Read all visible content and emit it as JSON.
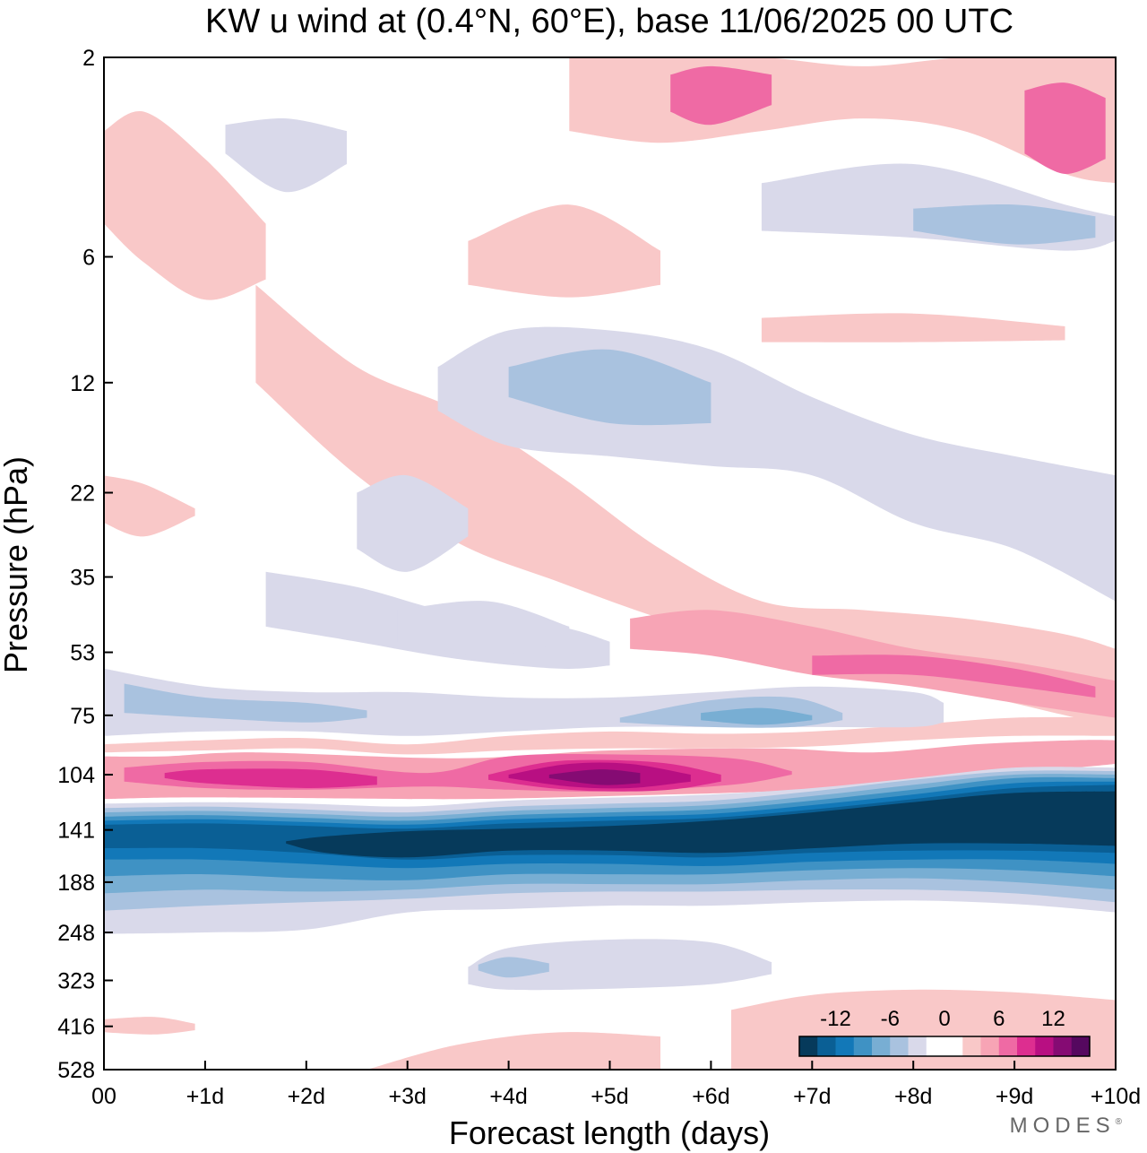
{
  "chart_data": {
    "type": "heatmap",
    "title": "KW u wind at (0.4°N, 60°E),  base 11/06/2025  00 UTC",
    "xlabel": "Forecast length (days)",
    "ylabel": "Pressure (hPa)",
    "x_ticks": [
      "00",
      "+1d",
      "+2d",
      "+3d",
      "+4d",
      "+5d",
      "+6d",
      "+7d",
      "+8d",
      "+9d",
      "+10d"
    ],
    "xlim": [
      0,
      10
    ],
    "y_ticks": [
      2,
      6,
      12,
      22,
      35,
      53,
      75,
      104,
      141,
      188,
      248,
      323,
      416,
      528
    ],
    "ylim": [
      2,
      528
    ],
    "colorbar": {
      "tick_labels": [
        "-12",
        "-6",
        "0",
        "6",
        "12"
      ],
      "colors": [
        "#063a5b",
        "#0a5f95",
        "#1278b8",
        "#3f92c4",
        "#78aed3",
        "#a9c2df",
        "#d9d9ea",
        "#ffffff",
        "#ffffff",
        "#f9c8c8",
        "#f7a4b5",
        "#ef6aa4",
        "#dd2e90",
        "#b80f82",
        "#850b73",
        "#55085f"
      ]
    },
    "regions": [
      {
        "level": 10,
        "x": [
          0.0,
          0.6,
          1.5,
          3.5,
          5.0,
          6.6,
          7.6,
          8.6,
          9.6,
          10.0
        ],
        "p_top": [
          94,
          94,
          92,
          95,
          91,
          90,
          92,
          88,
          86,
          86
        ],
        "p_bot": [
          119,
          118,
          118,
          119,
          117,
          114,
          110,
          104,
          100,
          98
        ]
      },
      {
        "level": 11,
        "x": [
          0.2,
          1.0,
          2.0,
          3.2,
          4.0,
          5.0,
          6.2,
          6.8
        ],
        "p_top": [
          100,
          97,
          97,
          103,
          94,
          93,
          95,
          102
        ],
        "p_bot": [
          108,
          112,
          113,
          111,
          113,
          114,
          110,
          104
        ]
      },
      {
        "level": 12,
        "x": [
          0.6,
          1.0,
          2.0,
          2.7
        ],
        "p_top": [
          103,
          101,
          101,
          105
        ],
        "p_bot": [
          106,
          109,
          112,
          110
        ]
      },
      {
        "level": 12,
        "x": [
          3.8,
          4.4,
          5.0,
          5.6,
          6.1
        ],
        "p_top": [
          104,
          97,
          96,
          98,
          104
        ],
        "p_bot": [
          107,
          112,
          114,
          113,
          108
        ]
      },
      {
        "level": 13,
        "x": [
          4.0,
          4.6,
          5.2,
          5.8
        ],
        "p_top": [
          104,
          98,
          98,
          104
        ],
        "p_bot": [
          106,
          111,
          112,
          108
        ]
      },
      {
        "level": 14,
        "x": [
          4.4,
          4.9,
          5.3
        ],
        "p_top": [
          104,
          101,
          103
        ],
        "p_bot": [
          106,
          110,
          109
        ]
      },
      {
        "level": 6,
        "x": [
          0.0,
          1.0,
          2.0,
          3.0,
          4.0,
          5.0,
          6.0,
          7.0,
          8.0,
          9.0,
          10.0
        ],
        "p_top": [
          122,
          121,
          122,
          124,
          120,
          118,
          116,
          112,
          106,
          100,
          100
        ],
        "p_bot": [
          250,
          248,
          244,
          222,
          218,
          214,
          214,
          210,
          208,
          212,
          222
        ]
      },
      {
        "level": 5,
        "x": [
          0.0,
          1.0,
          2.0,
          3.0,
          4.0,
          5.0,
          6.0,
          7.0,
          8.0,
          9.0,
          10.0
        ],
        "p_top": [
          125,
          124,
          126,
          128,
          124,
          122,
          120,
          114,
          107,
          102,
          102
        ],
        "p_bot": [
          220,
          214,
          210,
          206,
          200,
          198,
          198,
          196,
          196,
          200,
          210
        ]
      },
      {
        "level": 4,
        "x": [
          0.0,
          1.0,
          2.0,
          3.0,
          4.0,
          5.0,
          6.0,
          7.0,
          8.0,
          9.0,
          10.0
        ],
        "p_top": [
          128,
          127,
          129,
          131,
          127,
          125,
          123,
          117,
          110,
          104,
          104
        ],
        "p_bot": [
          200,
          196,
          198,
          196,
          190,
          190,
          190,
          186,
          184,
          188,
          196
        ]
      },
      {
        "level": 3,
        "x": [
          0.0,
          1.0,
          2.0,
          3.0,
          4.0,
          5.0,
          6.0,
          7.0,
          8.0,
          9.0,
          10.0
        ],
        "p_top": [
          131,
          130,
          132,
          134,
          130,
          128,
          126,
          120,
          113,
          106,
          106
        ],
        "p_bot": [
          182,
          180,
          184,
          186,
          180,
          180,
          180,
          176,
          174,
          176,
          182
        ]
      },
      {
        "level": 2,
        "x": [
          0.0,
          1.0,
          2.0,
          3.0,
          4.0,
          5.0,
          6.0,
          7.0,
          8.0,
          9.0,
          10.0
        ],
        "p_top": [
          134,
          133,
          135,
          137,
          133,
          131,
          129,
          123,
          116,
          109,
          108
        ],
        "p_bot": [
          166,
          166,
          170,
          174,
          170,
          170,
          172,
          168,
          166,
          166,
          170
        ]
      },
      {
        "level": 1,
        "x": [
          0.0,
          1.0,
          2.0,
          3.0,
          4.0,
          5.0,
          6.0,
          7.0,
          8.0,
          9.0,
          10.0
        ],
        "p_top": [
          137,
          136,
          138,
          140,
          136,
          134,
          132,
          126,
          119,
          112,
          110
        ],
        "p_bot": [
          156,
          156,
          160,
          166,
          162,
          162,
          164,
          160,
          158,
          158,
          160
        ]
      },
      {
        "level": 0,
        "x": [
          1.8,
          2.2,
          3.0,
          4.0,
          5.0,
          6.0,
          7.0,
          8.0,
          9.0,
          10.0
        ],
        "p_top": [
          150,
          146,
          142,
          140,
          138,
          134,
          128,
          121,
          115,
          114
        ],
        "p_bot": [
          152,
          160,
          164,
          158,
          158,
          160,
          156,
          152,
          152,
          154
        ]
      },
      {
        "level": 6,
        "x": [
          3.6,
          4.0,
          5.0,
          6.0,
          6.6
        ],
        "p_top": [
          300,
          270,
          258,
          262,
          292
        ],
        "p_bot": [
          330,
          340,
          338,
          330,
          312
        ]
      },
      {
        "level": 5,
        "x": [
          3.7,
          4.0,
          4.4
        ],
        "p_top": [
          296,
          284,
          294
        ],
        "p_bot": [
          306,
          318,
          308
        ]
      },
      {
        "level": 9,
        "x": [
          6.2,
          7.0,
          8.0,
          9.0,
          10.0
        ],
        "p_top": [
          380,
          350,
          340,
          345,
          360
        ],
        "p_bot": [
          528,
          528,
          528,
          528,
          528
        ]
      },
      {
        "level": 9,
        "x": [
          2.6,
          3.5,
          4.5,
          5.5
        ],
        "p_top": [
          528,
          460,
          430,
          440
        ],
        "p_bot": [
          528,
          528,
          528,
          528
        ]
      },
      {
        "level": 9,
        "x": [
          0.0,
          0.5,
          0.9
        ],
        "p_top": [
          400,
          395,
          410
        ],
        "p_bot": [
          430,
          435,
          425
        ]
      },
      {
        "level": 9,
        "x": [
          0.0,
          1.0,
          2.0,
          3.0,
          4.0,
          5.0,
          6.0,
          7.0,
          8.0,
          9.0,
          10.0
        ],
        "p_top": [
          88,
          86,
          85,
          88,
          84,
          82,
          83,
          82,
          79,
          76,
          76
        ],
        "p_bot": [
          92,
          91,
          90,
          93,
          91,
          90,
          90,
          89,
          86,
          84,
          84
        ]
      },
      {
        "level": 6,
        "x": [
          0.0,
          1.0,
          2.0,
          3.0,
          4.0,
          5.0,
          6.0,
          7.0,
          8.0,
          8.3
        ],
        "p_top": [
          58,
          64,
          66,
          66,
          68,
          68,
          66,
          64,
          66,
          70
        ],
        "p_bot": [
          84,
          82,
          82,
          84,
          82,
          80,
          80,
          80,
          80,
          78
        ]
      },
      {
        "level": 5,
        "x": [
          0.2,
          1.0,
          2.0,
          2.6
        ],
        "p_top": [
          63,
          68,
          70,
          73
        ],
        "p_bot": [
          74,
          76,
          78,
          76
        ]
      },
      {
        "level": 5,
        "x": [
          5.1,
          6.0,
          6.8,
          7.3
        ],
        "p_top": [
          76,
          69,
          68,
          74
        ],
        "p_bot": [
          78,
          80,
          80,
          77
        ]
      },
      {
        "level": 4,
        "x": [
          5.9,
          6.5,
          7.0
        ],
        "p_top": [
          74,
          72,
          75
        ],
        "p_bot": [
          77,
          79,
          77
        ]
      },
      {
        "level": 6,
        "x": [
          1.6,
          2.5,
          3.5,
          4.5,
          5.0
        ],
        "p_top": [
          34,
          37,
          43,
          46,
          50
        ],
        "p_bot": [
          46,
          50,
          55,
          58,
          57
        ]
      },
      {
        "level": 9,
        "x": [
          1.5,
          2.5,
          3.5,
          4.5,
          5.5,
          6.5,
          7.5,
          8.5,
          9.5,
          10.0
        ],
        "p_top": [
          7,
          11,
          14,
          20,
          30,
          40,
          42,
          44,
          48,
          52
        ],
        "p_bot": [
          12,
          20,
          29,
          36,
          44,
          52,
          60,
          66,
          75,
          80
        ]
      },
      {
        "level": 10,
        "x": [
          5.2,
          6.0,
          7.0,
          8.0,
          9.0,
          10.0
        ],
        "p_top": [
          44,
          42,
          46,
          52,
          56,
          62
        ],
        "p_bot": [
          52,
          54,
          60,
          64,
          70,
          76
        ]
      },
      {
        "level": 11,
        "x": [
          7.0,
          8.0,
          9.0,
          9.8
        ],
        "p_top": [
          54,
          54,
          58,
          64
        ],
        "p_bot": [
          60,
          60,
          64,
          68
        ]
      },
      {
        "level": 6,
        "x": [
          3.3,
          4.0,
          5.0,
          6.0,
          7.0,
          8.0,
          9.0,
          10.0
        ],
        "p_top": [
          11,
          9,
          9,
          10,
          13,
          16,
          18,
          20
        ],
        "p_bot": [
          14,
          17,
          18,
          19,
          20,
          26,
          30,
          40
        ]
      },
      {
        "level": 5,
        "x": [
          4.0,
          5.0,
          6.0
        ],
        "p_top": [
          11,
          10,
          12
        ],
        "p_bot": [
          13,
          15,
          15
        ]
      },
      {
        "level": 9,
        "x": [
          4.6,
          5.5,
          6.5,
          7.5,
          8.5,
          9.5,
          10.0
        ],
        "p_top": [
          2,
          2,
          2,
          2.1,
          2,
          2,
          2
        ],
        "p_bot": [
          3,
          3.2,
          3,
          2.8,
          3,
          3.8,
          4
        ]
      },
      {
        "level": 11,
        "x": [
          5.6,
          6.0,
          6.6
        ],
        "p_top": [
          2.2,
          2.1,
          2.2
        ],
        "p_bot": [
          2.7,
          2.9,
          2.6
        ]
      },
      {
        "level": 11,
        "x": [
          9.1,
          9.5,
          9.9
        ],
        "p_top": [
          2.4,
          2.3,
          2.5
        ],
        "p_bot": [
          3.4,
          3.8,
          3.5
        ]
      },
      {
        "level": 9,
        "x": [
          3.6,
          4.6,
          5.5
        ],
        "p_top": [
          5.5,
          4.5,
          5.8
        ],
        "p_bot": [
          7,
          7.5,
          7
        ]
      },
      {
        "level": 9,
        "x": [
          6.5,
          8.0,
          9.5
        ],
        "p_top": [
          8.4,
          8.2,
          8.8
        ],
        "p_bot": [
          9.6,
          9.6,
          9.5
        ]
      },
      {
        "level": 6,
        "x": [
          6.5,
          8.0,
          9.5,
          10.0
        ],
        "p_top": [
          4,
          3.6,
          4.5,
          4.8
        ],
        "p_bot": [
          5.2,
          5.4,
          5.8,
          5.5
        ]
      },
      {
        "level": 5,
        "x": [
          8.0,
          9.0,
          9.8
        ],
        "p_top": [
          4.6,
          4.5,
          4.8
        ],
        "p_bot": [
          5.2,
          5.6,
          5.4
        ]
      },
      {
        "level": 6,
        "x": [
          1.2,
          1.8,
          2.4
        ],
        "p_top": [
          2.9,
          2.8,
          3.0
        ],
        "p_bot": [
          3.4,
          4.2,
          3.6
        ]
      },
      {
        "level": 6,
        "x": [
          2.5,
          3.0,
          3.6
        ],
        "p_top": [
          22,
          20,
          24
        ],
        "p_bot": [
          30,
          34,
          28
        ]
      },
      {
        "level": 6,
        "x": [
          2.9,
          3.8,
          4.6
        ],
        "p_top": [
          42,
          40,
          46
        ],
        "p_bot": [
          50,
          54,
          50
        ]
      },
      {
        "level": 9,
        "x": [
          0.0,
          0.4,
          1.0,
          1.6
        ],
        "p_top": [
          3,
          2.7,
          3.5,
          5
        ],
        "p_bot": [
          5,
          6.2,
          7.6,
          6.8
        ]
      },
      {
        "level": 9,
        "x": [
          0.0,
          0.4,
          0.9
        ],
        "p_top": [
          20,
          21,
          24
        ],
        "p_bot": [
          26,
          28,
          25
        ]
      }
    ]
  }
}
